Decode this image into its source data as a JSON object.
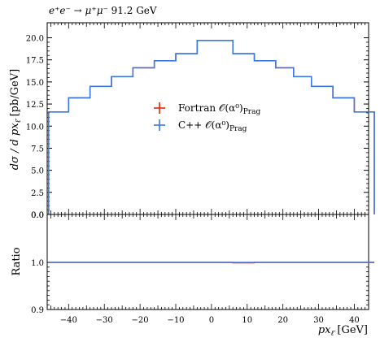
{
  "chart_data": [
    {
      "type": "step",
      "panel": "main",
      "title": "e⁺e⁻ → μ⁺μ⁻ 91.2 GeV",
      "ylabel": "dσ / d px_ℓ̄ [pb/GeV]",
      "xlim": [
        -46,
        44
      ],
      "ylim": [
        0.0,
        21.8
      ],
      "yticks": [
        "20.0",
        "17.5",
        "15.0",
        "12.5",
        "10.0",
        "7.5",
        "5.0",
        "2.5",
        "0.0"
      ],
      "grid": false,
      "legend_position": "center",
      "bin_edges": [
        -45.6,
        -40,
        -34,
        -28,
        -22,
        -16,
        -10,
        -4,
        6,
        12,
        18,
        23,
        28,
        34,
        40,
        45.6
      ],
      "series": [
        {
          "name": "Fortran 𝒪(α⁰)Prag",
          "color": "#ee2200",
          "values": [
            11.6,
            13.2,
            14.5,
            15.6,
            16.6,
            17.4,
            18.2,
            19.7,
            18.2,
            17.4,
            16.6,
            15.6,
            14.5,
            13.2,
            11.6
          ]
        },
        {
          "name": "C++ 𝒪(α⁰)Prag",
          "color": "#3b78e7",
          "values": [
            11.6,
            13.2,
            14.5,
            15.6,
            16.6,
            17.4,
            18.2,
            19.7,
            18.2,
            17.4,
            16.6,
            15.6,
            14.5,
            13.2,
            11.6
          ]
        }
      ]
    },
    {
      "type": "step",
      "panel": "ratio",
      "ylabel": "Ratio",
      "xlabel": "px_ℓ̄ [GeV]",
      "xlim": [
        -46,
        44
      ],
      "ylim": [
        0.9,
        1.1
      ],
      "yticks": [
        "1.0",
        "0.9"
      ],
      "xticks": [
        -40,
        -30,
        -20,
        -10,
        0,
        10,
        20,
        30,
        40
      ],
      "xtick_labels": [
        "−40",
        "−30",
        "−20",
        "−10",
        "0",
        "10",
        "20",
        "30",
        "40"
      ],
      "series": [
        {
          "name": "Fortran",
          "color": "#ee2200",
          "values": [
            1.0,
            1.0,
            1.0,
            1.0,
            1.0,
            1.0,
            1.0,
            1.0,
            0.999,
            1.0,
            1.0,
            1.0,
            1.0,
            1.0,
            1.0
          ]
        },
        {
          "name": "C++",
          "color": "#3b78e7",
          "values": [
            1.0,
            1.0,
            1.0,
            1.0,
            1.0,
            1.0,
            1.0,
            1.0,
            1.0,
            1.0,
            1.0,
            1.0,
            1.0,
            1.0,
            1.0
          ]
        }
      ]
    }
  ],
  "title_parts": {
    "process": "e⁺e⁻ → μ⁺μ⁻",
    "energy": "91.2 GeV"
  },
  "legend": {
    "items": [
      {
        "label": "Fortran 𝒪(α⁰)",
        "sub": "Prag",
        "color": "#ee2200"
      },
      {
        "label": "C++ 𝒪(α⁰)",
        "sub": "Prag",
        "color": "#3b78e7"
      }
    ]
  },
  "axis_text": {
    "ylabel_main": "dσ / d px",
    "ylabel_sub": "ℓ̄",
    "ylabel_unit": " [pb/GeV]",
    "ylabel_ratio": "Ratio",
    "xlabel_var": "px",
    "xlabel_sub": "ℓ̄",
    "xlabel_unit": " [GeV]"
  }
}
